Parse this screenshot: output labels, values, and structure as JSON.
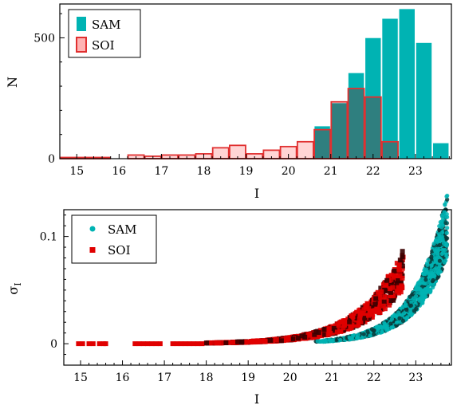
{
  "chart_data": [
    {
      "type": "bar",
      "xlabel": "I",
      "ylabel": "N",
      "xlim": [
        14.6,
        23.85
      ],
      "ylim": [
        0,
        640
      ],
      "xticks": [
        "15",
        "16",
        "17",
        "18",
        "19",
        "20",
        "21",
        "22",
        "23"
      ],
      "yticks": [
        "0",
        "500"
      ],
      "legend_position": "top-left",
      "bin_width": 0.4,
      "series": [
        {
          "name": "SAM",
          "color": "#00b3b3",
          "bins": [
            [
              20.6,
              135
            ],
            [
              21.0,
              230
            ],
            [
              21.4,
              355
            ],
            [
              21.8,
              500
            ],
            [
              22.2,
              580
            ],
            [
              22.6,
              620
            ],
            [
              23.0,
              480
            ],
            [
              23.4,
              65
            ]
          ]
        },
        {
          "name": "SOI",
          "color": "#ff4d4d",
          "bins": [
            [
              14.6,
              5
            ],
            [
              15.0,
              5
            ],
            [
              15.4,
              5
            ],
            [
              16.2,
              15
            ],
            [
              16.6,
              10
            ],
            [
              17.0,
              15
            ],
            [
              17.4,
              15
            ],
            [
              17.8,
              20
            ],
            [
              18.2,
              45
            ],
            [
              18.6,
              55
            ],
            [
              19.0,
              20
            ],
            [
              19.4,
              35
            ],
            [
              19.8,
              50
            ],
            [
              20.2,
              70
            ],
            [
              20.6,
              120
            ],
            [
              21.0,
              235
            ],
            [
              21.4,
              290
            ],
            [
              21.8,
              255
            ],
            [
              22.2,
              70
            ]
          ]
        }
      ],
      "overlap_color": "#2f7f7f"
    },
    {
      "type": "scatter",
      "xlabel": "I",
      "ylabel": "σ",
      "ylabel_sub": "I",
      "xlim": [
        14.6,
        23.85
      ],
      "ylim": [
        -0.02,
        0.125
      ],
      "xticks": [
        "15",
        "16",
        "17",
        "18",
        "19",
        "20",
        "21",
        "22",
        "23"
      ],
      "yticks": [
        "0",
        "0.1"
      ],
      "legend_position": "top-left",
      "series": [
        {
          "name": "SAM",
          "color": "#00b3b3",
          "marker": "circle",
          "x_range": [
            20.6,
            23.75
          ],
          "trend": "sigma rises steeply from ~0 at I=20.6 to ~0.12 at I=23.7"
        },
        {
          "name": "SOI",
          "color": "#e00000",
          "marker": "square",
          "x_range": [
            14.9,
            22.7
          ],
          "trend": "sigma ~0 below I=19, rising to ~0.065 at I=22.7"
        }
      ]
    }
  ]
}
